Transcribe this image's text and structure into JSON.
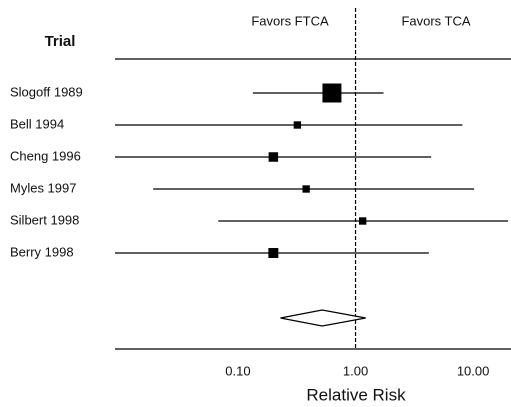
{
  "chart_data": {
    "type": "forest",
    "column_title": "Trial",
    "favors_left": "Favors FTCA",
    "favors_right": "Favors TCA",
    "x_label": "Relative Risk",
    "log_x": true,
    "xlim": [
      0.009,
      21
    ],
    "xticks": [
      {
        "value": 0.1,
        "label": "0.10"
      },
      {
        "value": 1,
        "label": "1.00"
      },
      {
        "value": 10,
        "label": "10.00"
      }
    ],
    "reference": 1,
    "color": "#000000",
    "categories": [
      "Slogoff 1989",
      "Bell 1994",
      "Cheng 1996",
      "Myles 1997",
      "Silbert 1998",
      "Berry 1998"
    ],
    "values": [
      0.63,
      0.32,
      0.2,
      0.38,
      1.15,
      0.2
    ],
    "lower": [
      0.134,
      0.009,
      0.009,
      0.019,
      0.068,
      0.009
    ],
    "upper": [
      1.73,
      8.1,
      4.4,
      10.2,
      19.8,
      4.2
    ],
    "weights": [
      40,
      6,
      10,
      6,
      6,
      11
    ],
    "pooled": {
      "value": 0.52,
      "lower": 0.23,
      "upper": 1.22
    }
  }
}
